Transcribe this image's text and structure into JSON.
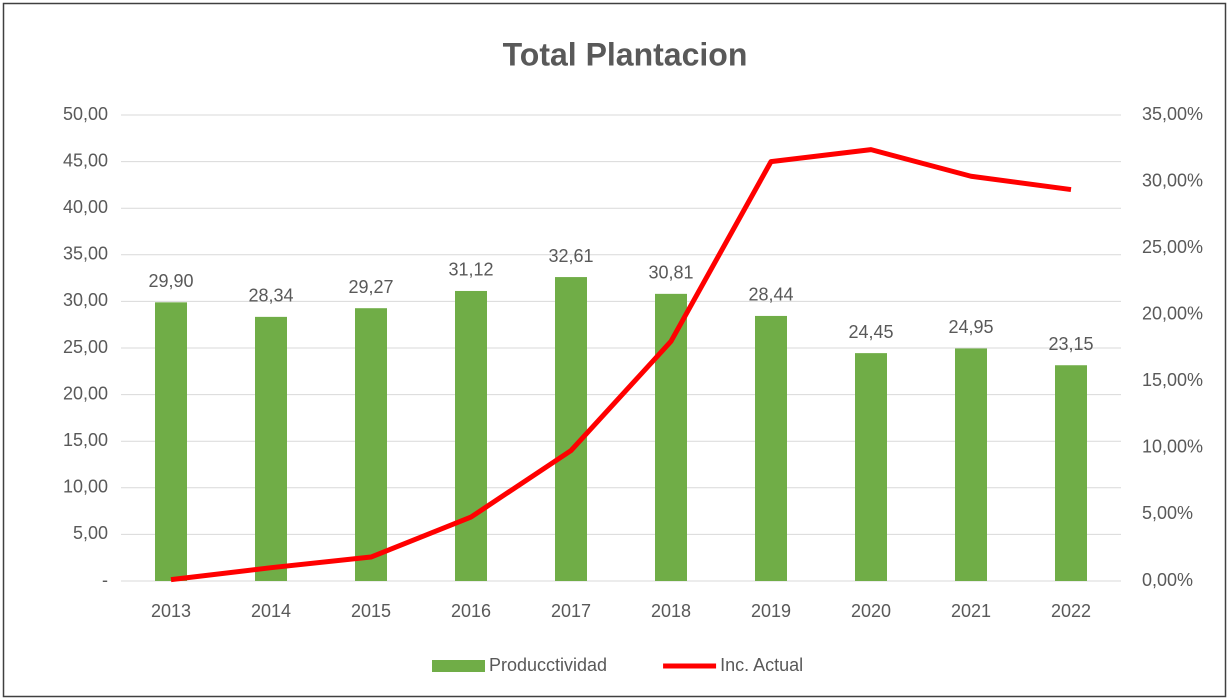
{
  "chart_data": {
    "type": "bar_line",
    "title": "Total Plantacion",
    "categories": [
      "2013",
      "2014",
      "2015",
      "2016",
      "2017",
      "2018",
      "2019",
      "2020",
      "2021",
      "2022"
    ],
    "series": [
      {
        "name": "Producctividad",
        "type": "bar",
        "color": "#70ad47",
        "values": [
          29.9,
          28.34,
          29.27,
          31.12,
          32.61,
          30.81,
          28.44,
          24.45,
          24.95,
          23.15
        ],
        "value_labels": [
          "29,90",
          "28,34",
          "29,27",
          "31,12",
          "32,61",
          "30,81",
          "28,44",
          "24,45",
          "24,95",
          "23,15"
        ]
      },
      {
        "name": "Inc. Actual",
        "type": "line",
        "color": "#ff0000",
        "axis": "y2",
        "values": [
          0.1,
          1.0,
          1.8,
          4.8,
          9.8,
          18.0,
          31.5,
          32.4,
          30.4,
          29.4
        ]
      }
    ],
    "ylim": [
      0,
      50
    ],
    "yticks": [
      {
        "value": 0,
        "label": "-"
      },
      {
        "value": 5,
        "label": "5,00"
      },
      {
        "value": 10,
        "label": "10,00"
      },
      {
        "value": 15,
        "label": "15,00"
      },
      {
        "value": 20,
        "label": "20,00"
      },
      {
        "value": 25,
        "label": "25,00"
      },
      {
        "value": 30,
        "label": "30,00"
      },
      {
        "value": 35,
        "label": "35,00"
      },
      {
        "value": 40,
        "label": "40,00"
      },
      {
        "value": 45,
        "label": "45,00"
      },
      {
        "value": 50,
        "label": "50,00"
      }
    ],
    "y2lim": [
      0,
      35
    ],
    "y2ticks": [
      {
        "value": 0,
        "label": "0,00%"
      },
      {
        "value": 5,
        "label": "5,00%"
      },
      {
        "value": 10,
        "label": "10,00%"
      },
      {
        "value": 15,
        "label": "15,00%"
      },
      {
        "value": 20,
        "label": "20,00%"
      },
      {
        "value": 25,
        "label": "25,00%"
      },
      {
        "value": 30,
        "label": "30,00%"
      },
      {
        "value": 35,
        "label": "35,00%"
      }
    ],
    "grid": true,
    "legend": "bottom"
  }
}
